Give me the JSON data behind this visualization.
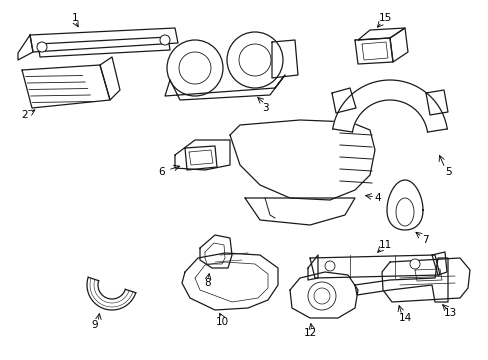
{
  "bg_color": "#ffffff",
  "line_color": "#1a1a1a",
  "figsize": [
    4.89,
    3.6
  ],
  "dpi": 100,
  "lw": 0.9,
  "label_fs": 7.5
}
